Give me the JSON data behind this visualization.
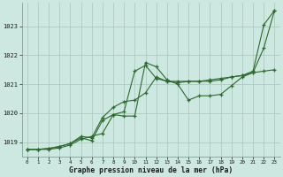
{
  "bg_color": "#cce8e0",
  "grid_color": "#b0c8c0",
  "line_color": "#2d6a2d",
  "xlabel": "Graphe pression niveau de la mer (hPa)",
  "xlim": [
    -0.5,
    23.5
  ],
  "ylim": [
    1018.5,
    1023.8
  ],
  "yticks": [
    1019,
    1020,
    1021,
    1022,
    1023
  ],
  "xticks": [
    0,
    1,
    2,
    3,
    4,
    5,
    6,
    7,
    8,
    9,
    10,
    11,
    12,
    13,
    14,
    15,
    16,
    17,
    18,
    19,
    20,
    21,
    22,
    23
  ],
  "series1": [
    1018.75,
    1018.75,
    1018.75,
    1018.8,
    1018.9,
    1019.1,
    1019.2,
    1019.3,
    1019.95,
    1020.05,
    1021.45,
    1021.65,
    1021.2,
    1021.1,
    1021.1,
    1021.1,
    1021.1,
    1021.1,
    1021.15,
    1021.25,
    1021.3,
    1021.4,
    1021.45,
    1021.5
  ],
  "series2": [
    1018.75,
    1018.75,
    1018.78,
    1018.85,
    1018.95,
    1019.2,
    1019.15,
    1019.85,
    1020.2,
    1020.4,
    1020.45,
    1020.7,
    1021.25,
    1021.1,
    1021.05,
    1021.1,
    1021.1,
    1021.15,
    1021.2,
    1021.25,
    1021.3,
    1021.45,
    1023.05,
    1023.55
  ],
  "series3": [
    1018.75,
    1018.75,
    1018.78,
    1018.85,
    1018.95,
    1019.15,
    1019.05,
    1019.75,
    1019.95,
    1019.9,
    1019.9,
    1021.75,
    1021.6,
    1021.15,
    1021.0,
    1020.45,
    1020.6,
    1020.6,
    1020.65,
    1020.95,
    1021.25,
    1021.4,
    1022.25,
    1023.55
  ]
}
